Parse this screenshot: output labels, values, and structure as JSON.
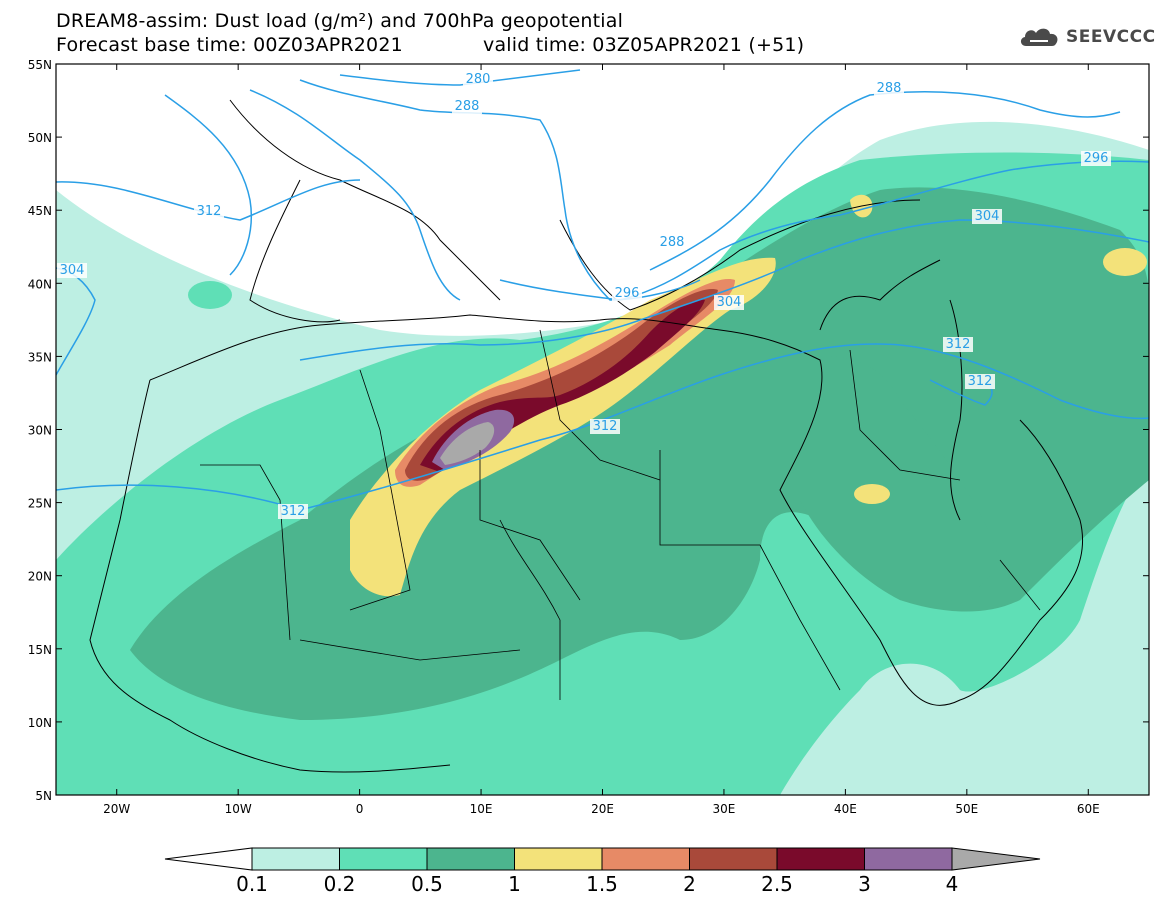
{
  "header": {
    "title_line1": "DREAM8-assim: Dust load (g/m²) and 700hPa geopotential",
    "base_time": "Forecast base time: 00Z03APR2021",
    "valid_time": "valid time: 03Z05APR2021 (+51)"
  },
  "logo": {
    "text": "SEEVCCC",
    "icon": "cloud-logo-icon"
  },
  "map": {
    "lon_range": [
      -25,
      65
    ],
    "lat_range": [
      5,
      55
    ],
    "lat_ticks": [
      "5N",
      "10N",
      "15N",
      "20N",
      "25N",
      "30N",
      "35N",
      "40N",
      "45N",
      "50N",
      "55N"
    ],
    "lon_ticks": [
      "20W",
      "10W",
      "0",
      "10E",
      "20E",
      "30E",
      "40E",
      "50E",
      "60E"
    ],
    "contour_labels": [
      "288",
      "288",
      "288",
      "296",
      "296",
      "304",
      "304",
      "304",
      "312",
      "312",
      "312",
      "312",
      "312",
      "280"
    ]
  },
  "colorbar": {
    "labels": [
      "0.1",
      "0.2",
      "0.5",
      "1",
      "1.5",
      "2",
      "2.5",
      "3",
      "4"
    ],
    "colors": [
      "#bdefe3",
      "#5fdfb6",
      "#4cb58e",
      "#f3e27a",
      "#e78a66",
      "#a9493a",
      "#7a0a2b",
      "#8f69a0",
      "#a9a9a9"
    ]
  }
}
